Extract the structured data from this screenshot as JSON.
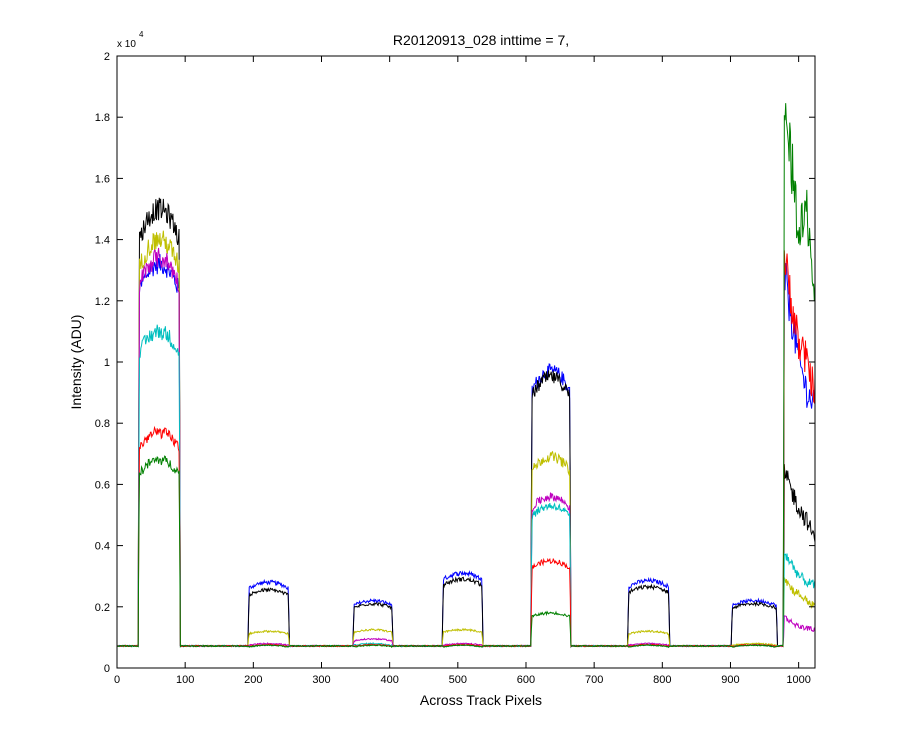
{
  "chart_data": {
    "type": "line",
    "title": "R20120913_028 inttime = 7,",
    "xlabel": "Across Track Pixels",
    "ylabel": "Intensity (ADU)",
    "y_multiplier_label": "x 10",
    "y_multiplier_exponent": "4",
    "xlim": [
      0,
      1024
    ],
    "ylim": [
      0,
      20000
    ],
    "x_ticks": [
      0,
      100,
      200,
      300,
      400,
      500,
      600,
      700,
      800,
      900,
      1000
    ],
    "y_ticks": [
      0,
      0.2,
      0.4,
      0.6,
      0.8,
      1,
      1.2,
      1.4,
      1.6,
      1.8,
      2
    ],
    "y_tick_scale": 10000,
    "grid": false,
    "baseline": 720,
    "series": [
      {
        "color": "#0000ff",
        "plateaus": [
          [
            32,
            92,
            13200
          ],
          [
            193,
            252,
            2800
          ],
          [
            347,
            404,
            2200
          ],
          [
            478,
            536,
            3100
          ],
          [
            608,
            665,
            9700
          ],
          [
            750,
            810,
            2850
          ],
          [
            902,
            968,
            2200
          ]
        ],
        "tail": [
          13000,
          11500,
          10000,
          9000,
          8500
        ]
      },
      {
        "color": "#000000",
        "plateaus": [
          [
            32,
            92,
            15000
          ],
          [
            193,
            252,
            2550
          ],
          [
            347,
            404,
            2100
          ],
          [
            478,
            536,
            2900
          ],
          [
            608,
            665,
            9500
          ],
          [
            750,
            810,
            2650
          ],
          [
            902,
            968,
            2100
          ]
        ],
        "tail": [
          6400,
          5800,
          5200,
          4800,
          4200
        ]
      },
      {
        "color": "#bfbf00",
        "plateaus": [
          [
            32,
            92,
            14000
          ],
          [
            193,
            252,
            1200
          ],
          [
            347,
            404,
            1250
          ],
          [
            478,
            536,
            1250
          ],
          [
            608,
            665,
            6900
          ],
          [
            750,
            810,
            1200
          ],
          [
            902,
            968,
            800
          ]
        ],
        "tail": [
          3000,
          2600,
          2400,
          2200,
          2000
        ]
      },
      {
        "color": "#bf00bf",
        "plateaus": [
          [
            32,
            92,
            13400
          ],
          [
            193,
            252,
            800
          ],
          [
            347,
            404,
            950
          ],
          [
            478,
            536,
            800
          ],
          [
            608,
            665,
            5600
          ],
          [
            750,
            810,
            800
          ],
          [
            902,
            968,
            750
          ]
        ],
        "tail": [
          1700,
          1500,
          1350,
          1300,
          1250
        ]
      },
      {
        "color": "#00bfbf",
        "plateaus": [
          [
            32,
            92,
            11000
          ],
          [
            193,
            252,
            750
          ],
          [
            347,
            404,
            800
          ],
          [
            478,
            536,
            750
          ],
          [
            608,
            665,
            5300
          ],
          [
            750,
            810,
            750
          ],
          [
            902,
            968,
            750
          ]
        ],
        "tail": [
          3800,
          3400,
          3000,
          2800,
          2700
        ]
      },
      {
        "color": "#ff0000",
        "plateaus": [
          [
            32,
            92,
            7700
          ],
          [
            193,
            252,
            760
          ],
          [
            347,
            404,
            760
          ],
          [
            478,
            536,
            760
          ],
          [
            608,
            665,
            3500
          ],
          [
            750,
            810,
            760
          ],
          [
            902,
            968,
            760
          ]
        ],
        "tail": [
          13500,
          12000,
          10500,
          10000,
          9000
        ]
      },
      {
        "color": "#008000",
        "plateaus": [
          [
            32,
            92,
            6800
          ],
          [
            193,
            252,
            740
          ],
          [
            347,
            404,
            740
          ],
          [
            478,
            536,
            740
          ],
          [
            608,
            665,
            1800
          ],
          [
            750,
            810,
            740
          ],
          [
            902,
            968,
            740
          ]
        ],
        "tail": [
          18200,
          16500,
          14000,
          15000,
          12000
        ]
      }
    ]
  }
}
